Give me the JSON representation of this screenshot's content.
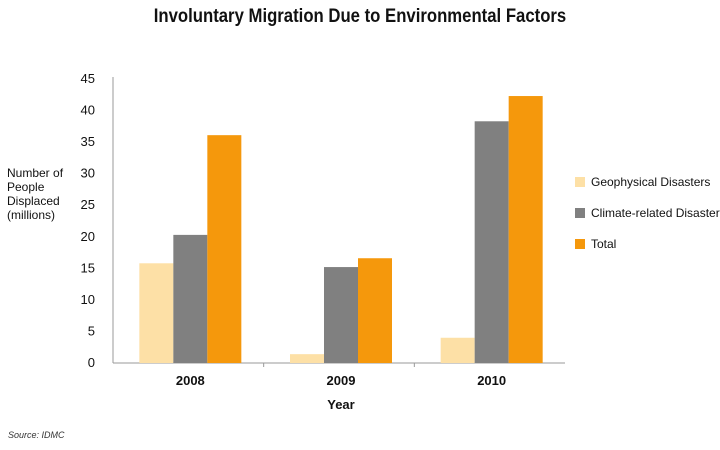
{
  "chart_data": {
    "type": "bar",
    "title": "Involuntary Migration Due to Environmental Factors",
    "xlabel": "Year",
    "ylabel_lines": [
      "Number of",
      "People",
      "Displaced",
      "(millions)"
    ],
    "categories": [
      "2008",
      "2009",
      "2010"
    ],
    "series": [
      {
        "name": "Geophysical Disasters",
        "color": "#fde0a6",
        "values": [
          15.8,
          1.4,
          4.0
        ]
      },
      {
        "name": "Climate-related Disasters",
        "color": "#808080",
        "values": [
          20.3,
          15.2,
          38.3
        ]
      },
      {
        "name": "Total",
        "color": "#f5980c",
        "values": [
          36.1,
          16.6,
          42.3
        ]
      }
    ],
    "ylim": [
      0,
      45
    ],
    "yticks": [
      0,
      5,
      10,
      15,
      20,
      25,
      30,
      35,
      40,
      45
    ],
    "grid": false,
    "legend_position": "right"
  },
  "source": "Source: IDMC"
}
